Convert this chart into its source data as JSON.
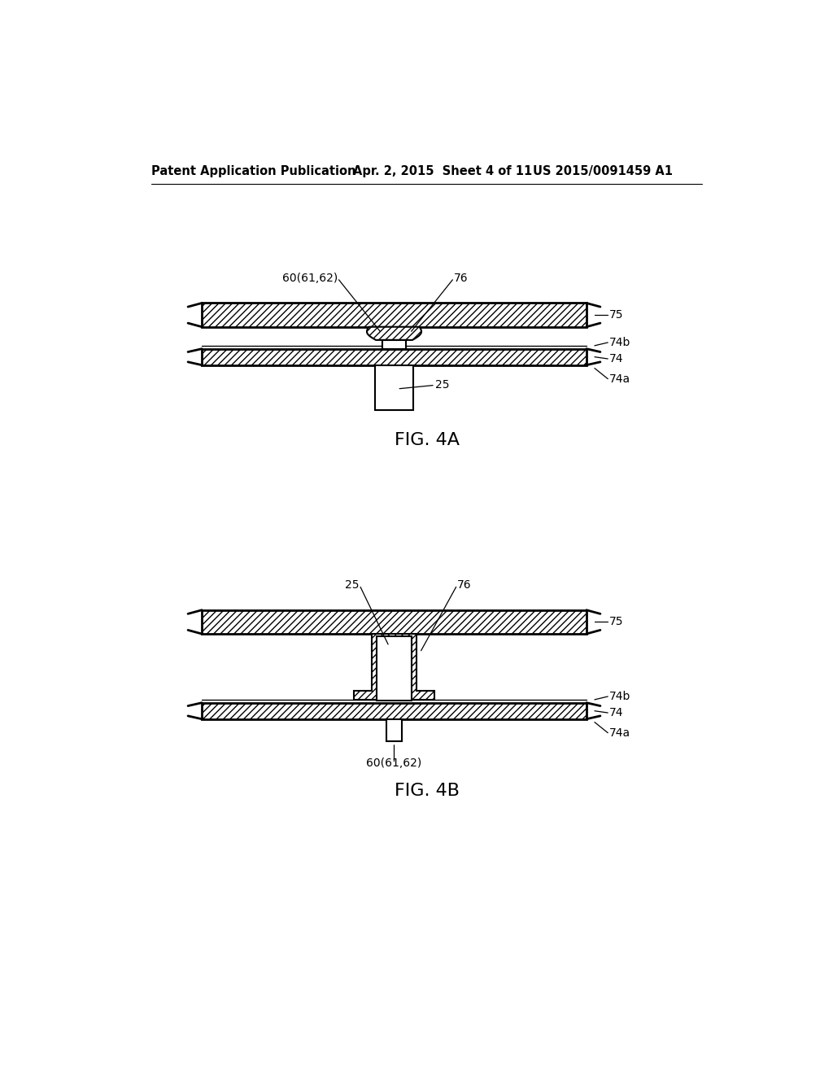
{
  "bg_color": "#ffffff",
  "header_left": "Patent Application Publication",
  "header_mid": "Apr. 2, 2015  Sheet 4 of 11",
  "header_right": "US 2015/0091459 A1",
  "fig4a_label": "FIG. 4A",
  "fig4b_label": "FIG. 4B"
}
